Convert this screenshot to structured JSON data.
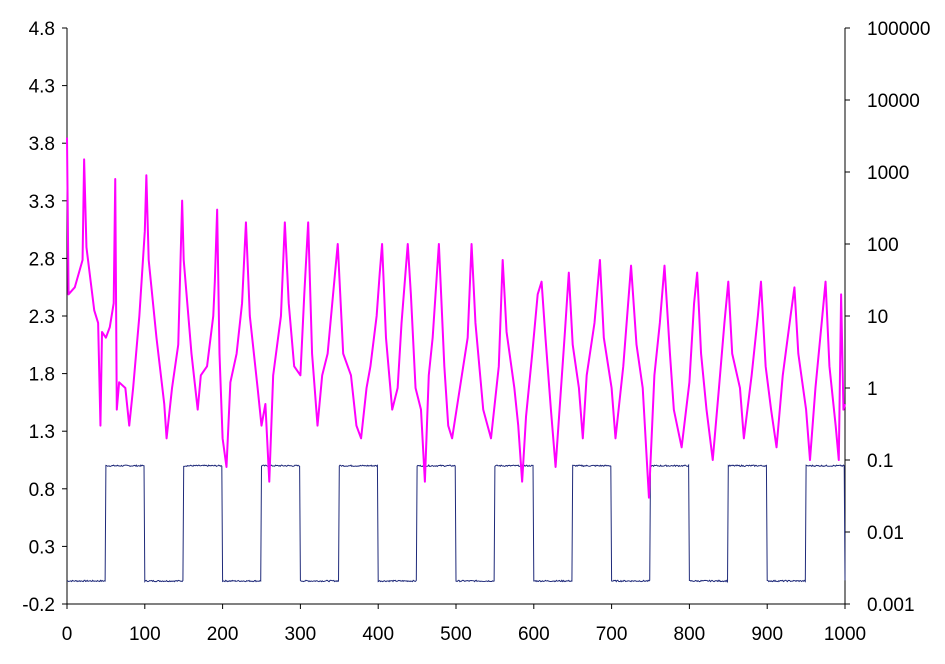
{
  "chart_data": {
    "type": "line",
    "title": "",
    "xlabel": "",
    "ylabel": "",
    "y2label": "",
    "grid": false,
    "legend": "none",
    "x_range": [
      0,
      1000
    ],
    "x_ticks": [
      "0",
      "100",
      "200",
      "300",
      "400",
      "500",
      "600",
      "700",
      "800",
      "900",
      "1000"
    ],
    "ylim_left": [
      -0.2,
      4.8
    ],
    "y_ticks_left": [
      "4.8",
      "4.3",
      "3.8",
      "3.3",
      "2.8",
      "2.3",
      "1.8",
      "1.3",
      "0.8",
      "0.3",
      "-0.2"
    ],
    "ylim_right": [
      0.001,
      100000
    ],
    "y_scale_right": "log",
    "y_ticks_right": [
      "100000",
      "10000",
      "1000",
      "100",
      "10",
      "1",
      "0.1",
      "0.01",
      "0.001"
    ],
    "series": [
      {
        "axis": "left",
        "color": "#1f2a7a",
        "description_kind": "square-wave",
        "low": 0.0,
        "high": 1.0,
        "period": 100,
        "rise_offset": 50,
        "x_start": 0,
        "x_end": 1000
      },
      {
        "axis": "right",
        "color": "#ff00ff",
        "description_kind": "noisy-spiky",
        "points": [
          [
            0,
            3000
          ],
          [
            2,
            20
          ],
          [
            10,
            25
          ],
          [
            20,
            60
          ],
          [
            22,
            1500
          ],
          [
            25,
            90
          ],
          [
            35,
            12
          ],
          [
            40,
            8
          ],
          [
            43,
            0.3
          ],
          [
            45,
            6
          ],
          [
            50,
            5
          ],
          [
            55,
            7
          ],
          [
            60,
            15
          ],
          [
            62,
            800
          ],
          [
            64,
            0.5
          ],
          [
            67,
            1.2
          ],
          [
            75,
            1.0
          ],
          [
            80,
            0.3
          ],
          [
            85,
            1.0
          ],
          [
            93,
            10
          ],
          [
            100,
            150
          ],
          [
            102,
            900
          ],
          [
            105,
            60
          ],
          [
            115,
            5
          ],
          [
            125,
            0.6
          ],
          [
            128,
            0.2
          ],
          [
            135,
            1.0
          ],
          [
            143,
            4
          ],
          [
            148,
            400
          ],
          [
            150,
            60
          ],
          [
            160,
            3
          ],
          [
            168,
            0.5
          ],
          [
            172,
            1.5
          ],
          [
            180,
            2
          ],
          [
            188,
            10
          ],
          [
            190,
            30
          ],
          [
            193,
            300
          ],
          [
            196,
            3
          ],
          [
            200,
            0.2
          ],
          [
            205,
            0.08
          ],
          [
            210,
            1.2
          ],
          [
            218,
            3
          ],
          [
            225,
            15
          ],
          [
            230,
            200
          ],
          [
            235,
            10
          ],
          [
            245,
            1
          ],
          [
            250,
            0.3
          ],
          [
            255,
            0.6
          ],
          [
            260,
            0.05
          ],
          [
            265,
            1.5
          ],
          [
            275,
            10
          ],
          [
            280,
            200
          ],
          [
            285,
            15
          ],
          [
            292,
            2
          ],
          [
            300,
            1.5
          ],
          [
            305,
            20
          ],
          [
            310,
            200
          ],
          [
            315,
            3
          ],
          [
            322,
            0.3
          ],
          [
            328,
            1.5
          ],
          [
            335,
            3
          ],
          [
            342,
            20
          ],
          [
            348,
            100
          ],
          [
            355,
            3
          ],
          [
            365,
            1.5
          ],
          [
            372,
            0.3
          ],
          [
            378,
            0.2
          ],
          [
            385,
            1.0
          ],
          [
            390,
            2
          ],
          [
            398,
            10
          ],
          [
            402,
            40
          ],
          [
            405,
            100
          ],
          [
            410,
            5
          ],
          [
            418,
            0.5
          ],
          [
            425,
            1
          ],
          [
            430,
            8
          ],
          [
            438,
            100
          ],
          [
            442,
            20
          ],
          [
            448,
            1
          ],
          [
            455,
            0.5
          ],
          [
            460,
            0.05
          ],
          [
            465,
            1.5
          ],
          [
            470,
            5
          ],
          [
            478,
            100
          ],
          [
            485,
            2
          ],
          [
            490,
            0.3
          ],
          [
            495,
            0.2
          ],
          [
            505,
            1
          ],
          [
            515,
            5
          ],
          [
            520,
            100
          ],
          [
            525,
            8
          ],
          [
            535,
            0.5
          ],
          [
            545,
            0.2
          ],
          [
            555,
            2
          ],
          [
            560,
            60
          ],
          [
            565,
            6
          ],
          [
            575,
            1
          ],
          [
            580,
            0.3
          ],
          [
            585,
            0.05
          ],
          [
            590,
            0.4
          ],
          [
            598,
            3
          ],
          [
            605,
            20
          ],
          [
            610,
            30
          ],
          [
            615,
            5
          ],
          [
            622,
            0.5
          ],
          [
            628,
            0.08
          ],
          [
            635,
            1
          ],
          [
            640,
            6
          ],
          [
            645,
            40
          ],
          [
            650,
            4
          ],
          [
            658,
            1
          ],
          [
            663,
            0.2
          ],
          [
            668,
            1.5
          ],
          [
            678,
            8
          ],
          [
            685,
            60
          ],
          [
            690,
            5
          ],
          [
            700,
            1
          ],
          [
            705,
            0.2
          ],
          [
            715,
            2
          ],
          [
            720,
            10
          ],
          [
            725,
            50
          ],
          [
            732,
            4
          ],
          [
            740,
            1
          ],
          [
            748,
            0.03
          ],
          [
            755,
            1.5
          ],
          [
            762,
            8
          ],
          [
            768,
            50
          ],
          [
            775,
            3
          ],
          [
            780,
            0.5
          ],
          [
            790,
            0.15
          ],
          [
            800,
            1.2
          ],
          [
            806,
            15
          ],
          [
            810,
            40
          ],
          [
            815,
            3
          ],
          [
            822,
            0.5
          ],
          [
            830,
            0.1
          ],
          [
            838,
            1
          ],
          [
            845,
            8
          ],
          [
            850,
            30
          ],
          [
            855,
            3
          ],
          [
            865,
            1
          ],
          [
            870,
            0.2
          ],
          [
            880,
            1.5
          ],
          [
            888,
            10
          ],
          [
            892,
            30
          ],
          [
            898,
            2
          ],
          [
            905,
            0.5
          ],
          [
            912,
            0.15
          ],
          [
            920,
            1.5
          ],
          [
            930,
            10
          ],
          [
            935,
            25
          ],
          [
            940,
            3
          ],
          [
            950,
            0.5
          ],
          [
            955,
            0.1
          ],
          [
            962,
            1
          ],
          [
            970,
            8
          ],
          [
            975,
            30
          ],
          [
            980,
            2
          ],
          [
            988,
            0.3
          ],
          [
            992,
            0.1
          ],
          [
            995,
            20
          ],
          [
            998,
            0.5
          ],
          [
            1000,
            0.6
          ]
        ]
      }
    ]
  }
}
